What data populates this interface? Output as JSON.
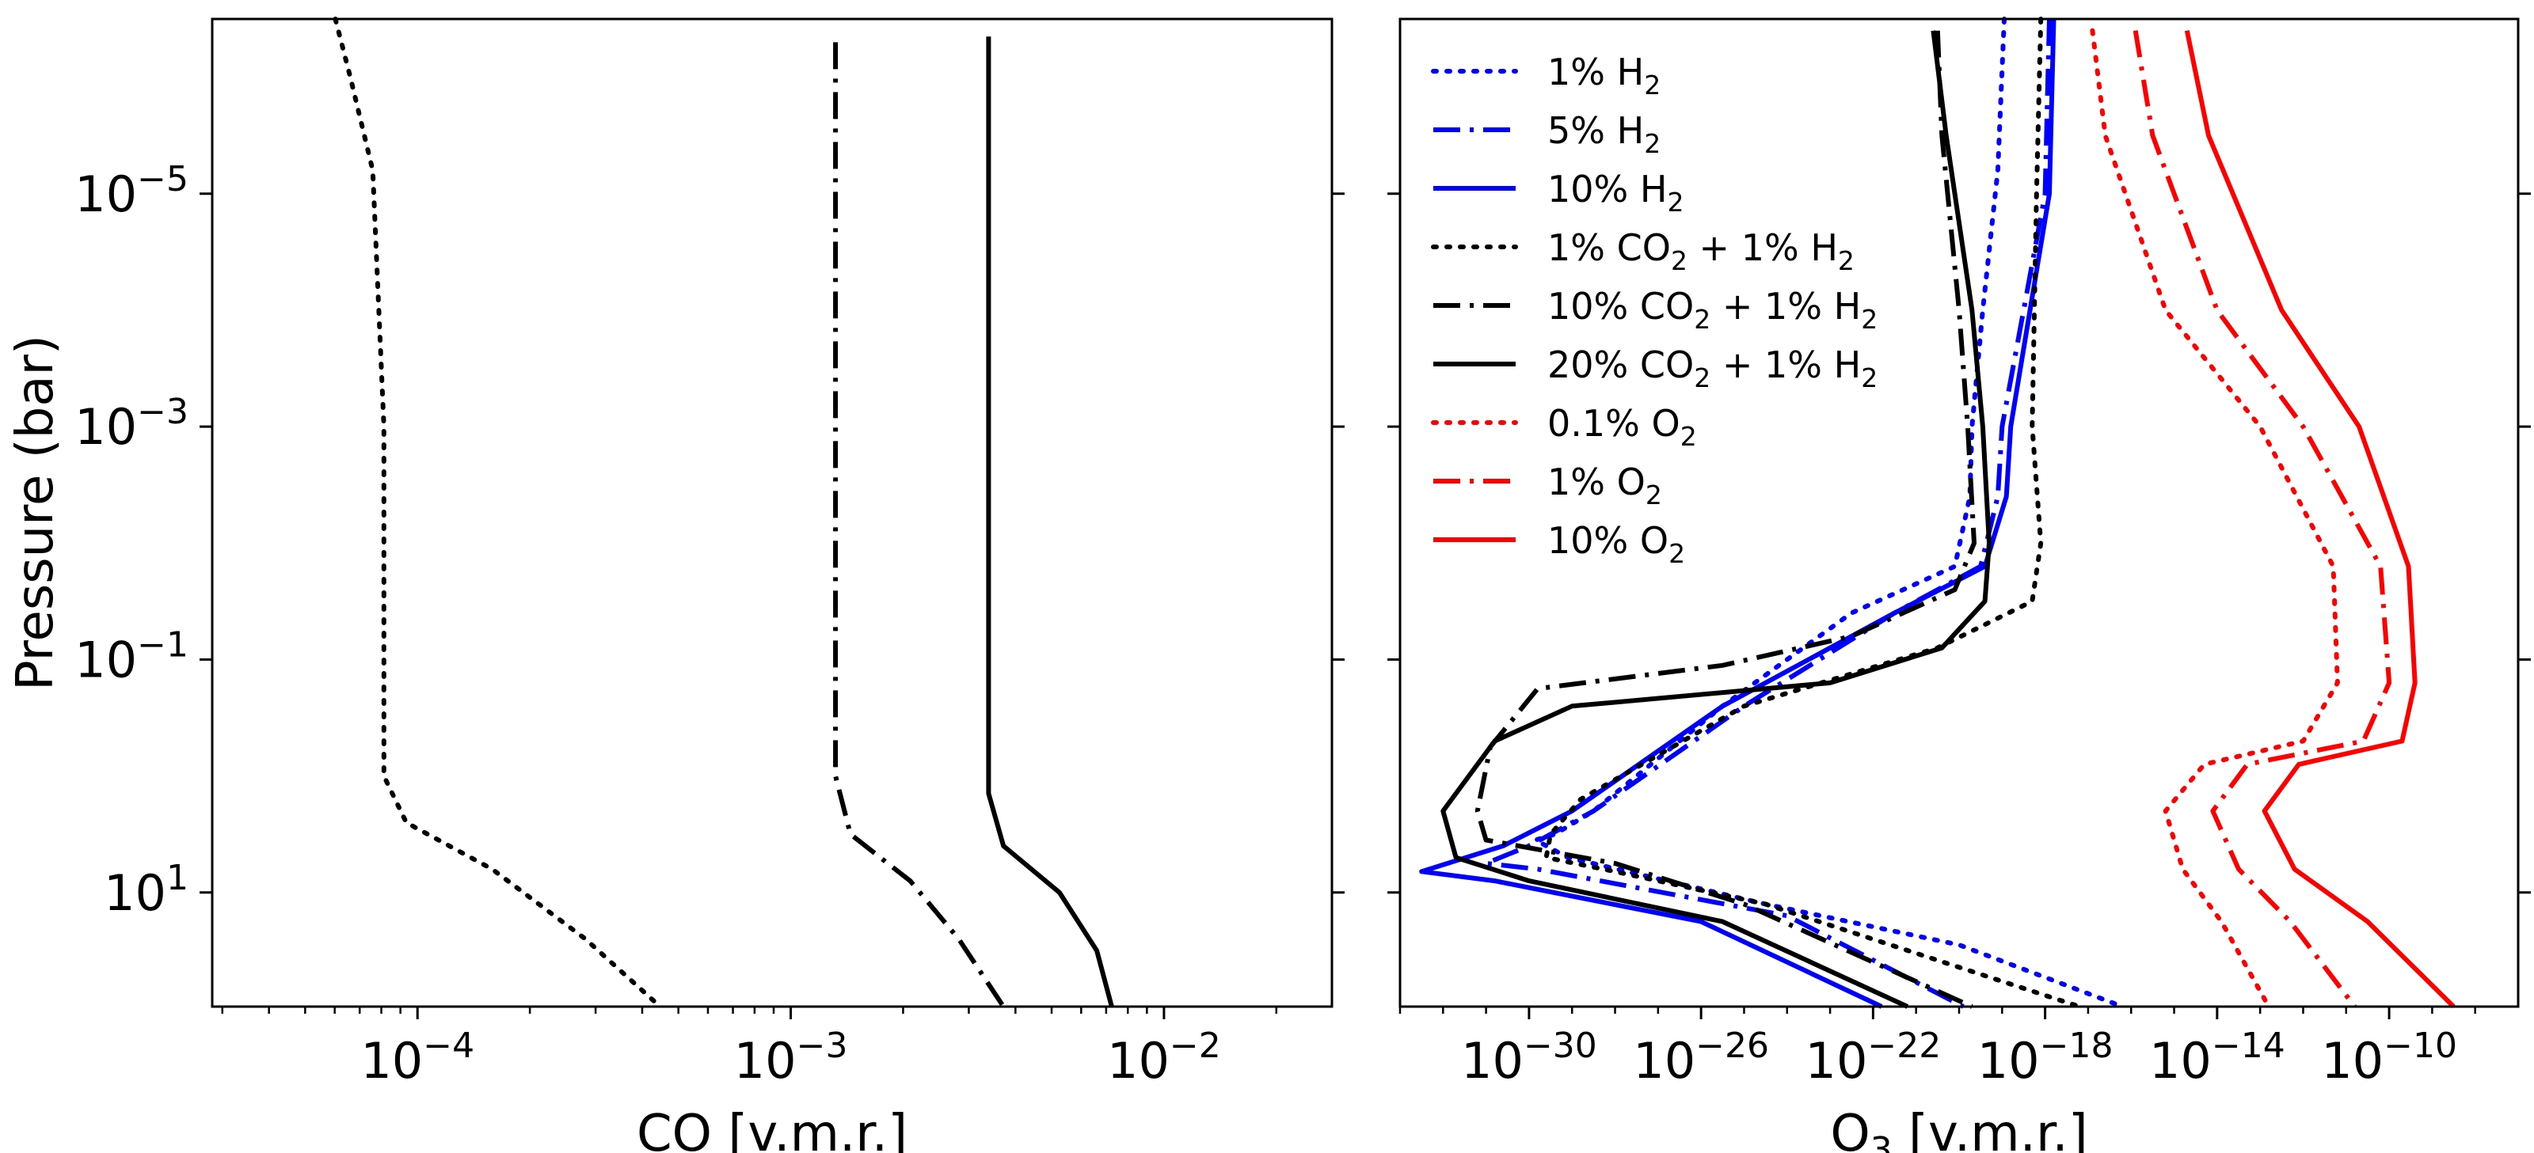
{
  "colors": {
    "blue": "#0000ff",
    "black": "#000000",
    "red": "#ff0000"
  },
  "line_styles": {
    "dotted": "dotted",
    "dashdot": "dash-dot",
    "solid": "solid"
  },
  "chart_data": [
    {
      "type": "line",
      "panel": "left",
      "xlabel": "CO [v.m.r.]",
      "ylabel": "Pressure (bar)",
      "xscale": "log",
      "yscale": "log",
      "y_inverted": true,
      "xlim_log10": [
        -4.55,
        -1.55
      ],
      "ylim_log10": [
        -6.5,
        1.98
      ],
      "xticks": [
        {
          "base": "10",
          "exp": "−4",
          "value_log10": -4
        },
        {
          "base": "10",
          "exp": "−3",
          "value_log10": -3
        },
        {
          "base": "10",
          "exp": "−2",
          "value_log10": -2
        }
      ],
      "yticks": [
        {
          "base": "10",
          "exp": "−5",
          "value_log10": -5
        },
        {
          "base": "10",
          "exp": "−3",
          "value_log10": -3
        },
        {
          "base": "10",
          "exp": "−1",
          "value_log10": -1
        },
        {
          "base": "10",
          "exp": "1",
          "value_log10": 1
        }
      ],
      "grid": false,
      "legend": "none",
      "series": [
        {
          "style": "dotted",
          "color": "#000000",
          "points_log10": [
            [
              -4.22,
              -6.5
            ],
            [
              -4.18,
              -6.0
            ],
            [
              -4.12,
              -5.2
            ],
            [
              -4.09,
              -3.0
            ],
            [
              -4.09,
              0.0
            ],
            [
              -4.03,
              0.4
            ],
            [
              -3.8,
              0.8
            ],
            [
              -3.55,
              1.4
            ],
            [
              -3.35,
              1.98
            ]
          ]
        },
        {
          "style": "dashdot",
          "color": "#000000",
          "points_log10": [
            [
              -2.88,
              -6.3
            ],
            [
              -2.88,
              0.0
            ],
            [
              -2.84,
              0.5
            ],
            [
              -2.68,
              0.9
            ],
            [
              -2.55,
              1.4
            ],
            [
              -2.43,
              1.98
            ]
          ]
        },
        {
          "style": "solid",
          "color": "#000000",
          "points_log10": [
            [
              -2.47,
              -6.35
            ],
            [
              -2.47,
              0.15
            ],
            [
              -2.43,
              0.6
            ],
            [
              -2.28,
              1.0
            ],
            [
              -2.18,
              1.5
            ],
            [
              -2.14,
              1.98
            ]
          ]
        }
      ]
    },
    {
      "type": "line",
      "panel": "right",
      "xlabel_main": "O",
      "xlabel_sub": "3",
      "xlabel_tail": " [v.m.r.]",
      "xscale": "log",
      "yscale": "log",
      "y_inverted": true,
      "shared_y": true,
      "xlim_log10": [
        -33,
        -7
      ],
      "ylim_log10": [
        -6.5,
        1.98
      ],
      "xticks": [
        {
          "base": "10",
          "exp": "−30",
          "value_log10": -30
        },
        {
          "base": "10",
          "exp": "−26",
          "value_log10": -26
        },
        {
          "base": "10",
          "exp": "−22",
          "value_log10": -22
        },
        {
          "base": "10",
          "exp": "−18",
          "value_log10": -18
        },
        {
          "base": "10",
          "exp": "−14",
          "value_log10": -14
        },
        {
          "base": "10",
          "exp": "−10",
          "value_log10": -10
        }
      ],
      "grid": false,
      "legend": "top-left",
      "series": [
        {
          "label_parts": [
            "1% H",
            "2",
            ""
          ],
          "style": "dotted",
          "color": "#0000ff",
          "points_log10": [
            [
              -18.95,
              -6.5
            ],
            [
              -19.1,
              -5.2
            ],
            [
              -19.45,
              -4.0
            ],
            [
              -19.7,
              -3.0
            ],
            [
              -19.75,
              -2.4
            ],
            [
              -20.1,
              -1.8
            ],
            [
              -22.5,
              -1.4
            ],
            [
              -25.5,
              -0.6
            ],
            [
              -28.5,
              0.3
            ],
            [
              -29.4,
              0.5
            ],
            [
              -29.85,
              0.55
            ],
            [
              -29.1,
              0.7
            ],
            [
              -24.5,
              1.1
            ],
            [
              -20.0,
              1.45
            ],
            [
              -16.2,
              1.98
            ]
          ]
        },
        {
          "label_parts": [
            "5% H",
            "2",
            ""
          ],
          "style": "dashdot",
          "color": "#0000ff",
          "points_log10": [
            [
              -17.9,
              -6.5
            ],
            [
              -18.0,
              -5.0
            ],
            [
              -18.5,
              -4.0
            ],
            [
              -19.0,
              -3.0
            ],
            [
              -19.1,
              -2.4
            ],
            [
              -19.5,
              -1.8
            ],
            [
              -21.5,
              -1.4
            ],
            [
              -25.0,
              -0.6
            ],
            [
              -28.5,
              0.3
            ],
            [
              -30.0,
              0.6
            ],
            [
              -31.0,
              0.75
            ],
            [
              -29.8,
              0.8
            ],
            [
              -24.0,
              1.2
            ],
            [
              -19.9,
              1.98
            ]
          ]
        },
        {
          "label_parts": [
            "10% H",
            "2",
            ""
          ],
          "style": "solid",
          "color": "#0000ff",
          "points_log10": [
            [
              -17.8,
              -6.5
            ],
            [
              -17.9,
              -5.0
            ],
            [
              -18.35,
              -4.0
            ],
            [
              -18.8,
              -3.0
            ],
            [
              -18.9,
              -2.4
            ],
            [
              -19.4,
              -1.8
            ],
            [
              -21.5,
              -1.4
            ],
            [
              -25.5,
              -0.6
            ],
            [
              -29.0,
              0.3
            ],
            [
              -30.6,
              0.6
            ],
            [
              -32.5,
              0.82
            ],
            [
              -30.8,
              0.9
            ],
            [
              -26.0,
              1.25
            ],
            [
              -21.8,
              1.98
            ]
          ]
        },
        {
          "label_parts": [
            "1% CO",
            "2",
            " + 1% H"
          ],
          "label_sub2": "2",
          "style": "dotted",
          "color": "#000000",
          "points_log10": [
            [
              -18.1,
              -6.5
            ],
            [
              -18.2,
              -5.0
            ],
            [
              -18.3,
              -3.0
            ],
            [
              -18.1,
              -2.0
            ],
            [
              -18.3,
              -1.5
            ],
            [
              -20.5,
              -1.1
            ],
            [
              -25.0,
              -0.6
            ],
            [
              -28.8,
              0.2
            ],
            [
              -29.5,
              0.5
            ],
            [
              -29.6,
              0.7
            ],
            [
              -28.0,
              0.82
            ],
            [
              -24.5,
              1.1
            ],
            [
              -17.2,
              1.98
            ]
          ]
        },
        {
          "label_parts": [
            "10% CO",
            "2",
            " + 1% H"
          ],
          "label_sub2": "2",
          "style": "dashdot",
          "color": "#000000",
          "points_log10": [
            [
              -20.5,
              -6.4
            ],
            [
              -20.4,
              -5.5
            ],
            [
              -20.0,
              -4.0
            ],
            [
              -19.8,
              -3.0
            ],
            [
              -19.65,
              -2.0
            ],
            [
              -20.1,
              -1.6
            ],
            [
              -22.5,
              -1.2
            ],
            [
              -25.5,
              -0.95
            ],
            [
              -29.8,
              -0.75
            ],
            [
              -30.9,
              -0.25
            ],
            [
              -31.2,
              0.3
            ],
            [
              -31.0,
              0.55
            ],
            [
              -28.0,
              0.75
            ],
            [
              -25.0,
              1.1
            ],
            [
              -19.7,
              1.98
            ]
          ]
        },
        {
          "label_parts": [
            "20% CO",
            "2",
            " + 1% H"
          ],
          "label_sub2": "2",
          "style": "solid",
          "color": "#000000",
          "points_log10": [
            [
              -20.6,
              -6.4
            ],
            [
              -20.3,
              -5.5
            ],
            [
              -19.7,
              -4.0
            ],
            [
              -19.45,
              -3.0
            ],
            [
              -19.3,
              -2.0
            ],
            [
              -19.4,
              -1.5
            ],
            [
              -20.4,
              -1.1
            ],
            [
              -23.0,
              -0.8
            ],
            [
              -29.0,
              -0.6
            ],
            [
              -30.8,
              -0.3
            ],
            [
              -32.0,
              0.3
            ],
            [
              -31.7,
              0.7
            ],
            [
              -30.0,
              0.9
            ],
            [
              -25.5,
              1.25
            ],
            [
              -21.2,
              1.98
            ]
          ]
        },
        {
          "label_parts": [
            "0.1% O",
            "2",
            ""
          ],
          "style": "dotted",
          "color": "#ff0000",
          "points_log10": [
            [
              -16.9,
              -6.4
            ],
            [
              -16.6,
              -5.5
            ],
            [
              -15.2,
              -4.0
            ],
            [
              -13.0,
              -3.0
            ],
            [
              -11.3,
              -1.8
            ],
            [
              -11.2,
              -0.8
            ],
            [
              -12.0,
              -0.3
            ],
            [
              -14.3,
              -0.1
            ],
            [
              -15.2,
              0.3
            ],
            [
              -14.8,
              0.8
            ],
            [
              -13.9,
              1.25
            ],
            [
              -12.8,
              1.98
            ]
          ]
        },
        {
          "label_parts": [
            "1% O",
            "2",
            ""
          ],
          "style": "dashdot",
          "color": "#ff0000",
          "points_log10": [
            [
              -15.9,
              -6.4
            ],
            [
              -15.5,
              -5.5
            ],
            [
              -14.0,
              -4.0
            ],
            [
              -12.0,
              -3.0
            ],
            [
              -10.2,
              -1.8
            ],
            [
              -10.0,
              -0.8
            ],
            [
              -10.6,
              -0.3
            ],
            [
              -13.3,
              -0.1
            ],
            [
              -14.1,
              0.3
            ],
            [
              -13.5,
              0.8
            ],
            [
              -12.3,
              1.25
            ],
            [
              -10.8,
              1.98
            ]
          ]
        },
        {
          "label_parts": [
            "10% O",
            "2",
            ""
          ],
          "style": "solid",
          "color": "#ff0000",
          "points_log10": [
            [
              -14.7,
              -6.4
            ],
            [
              -14.2,
              -5.5
            ],
            [
              -12.5,
              -4.0
            ],
            [
              -10.7,
              -3.0
            ],
            [
              -9.55,
              -1.8
            ],
            [
              -9.4,
              -0.8
            ],
            [
              -9.7,
              -0.3
            ],
            [
              -12.1,
              -0.1
            ],
            [
              -12.9,
              0.3
            ],
            [
              -12.2,
              0.8
            ],
            [
              -10.5,
              1.25
            ],
            [
              -8.5,
              1.98
            ]
          ]
        }
      ]
    }
  ]
}
